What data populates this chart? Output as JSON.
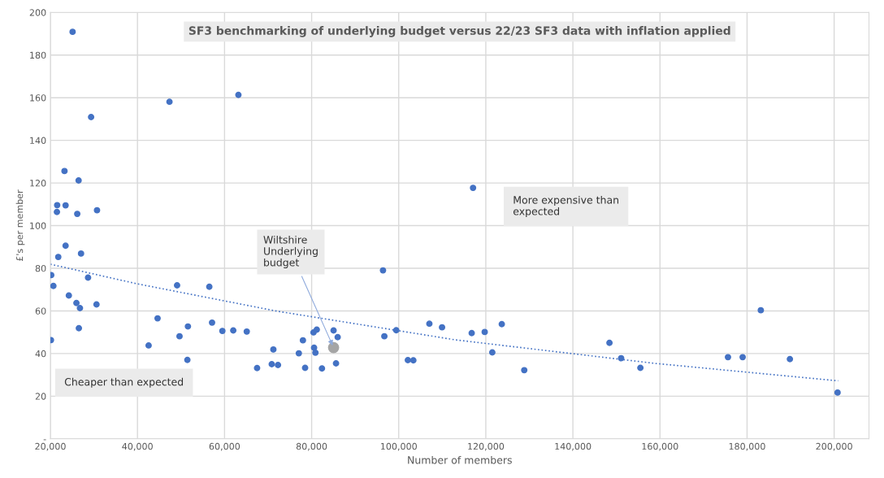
{
  "chart_data": {
    "type": "scatter",
    "title": "SF3 benchmarking of underlying budget versus 22/23 SF3 data with inflation applied",
    "xlabel": "Number of members",
    "ylabel": "£'s per member",
    "xlim": [
      20000,
      208000
    ],
    "xticks": [
      {
        "value": 20000,
        "label": "20,000"
      },
      {
        "value": 40000,
        "label": "40,000"
      },
      {
        "value": 60000,
        "label": "60,000"
      },
      {
        "value": 80000,
        "label": "80,000"
      },
      {
        "value": 100000,
        "label": "100,000"
      },
      {
        "value": 120000,
        "label": "120,000"
      },
      {
        "value": 140000,
        "label": "140,000"
      },
      {
        "value": 160000,
        "label": "160,000"
      },
      {
        "value": 180000,
        "label": "180,000"
      },
      {
        "value": 200000,
        "label": "200,000"
      }
    ],
    "ylim": [
      0,
      200
    ],
    "yticks": [
      {
        "value": 0,
        "label": "-"
      },
      20,
      40,
      60,
      80,
      100,
      120,
      140,
      160,
      180,
      200
    ],
    "grid": true,
    "legend": false,
    "marker": "circle",
    "series": [
      {
        "color": "#4472c4",
        "x": [
          25100,
          29350,
          47350,
          63180,
          23240,
          26480,
          21560,
          23490,
          21500,
          26170,
          30710,
          23490,
          21810,
          27040,
          20190,
          20690,
          28650,
          24240,
          25980,
          26790,
          30590,
          26540,
          20130,
          49100,
          56500,
          44620,
          42560,
          49660,
          51590,
          51460,
          57130,
          59500,
          62000,
          65100,
          67470,
          71210,
          70840,
          72270,
          78000,
          77060,
          78500,
          80430,
          81180,
          80560,
          80870,
          82370,
          85040,
          85980,
          85600,
          96390,
          96700,
          99430,
          102100,
          103360,
          107040,
          109950,
          116760,
          119750,
          121490,
          123670,
          128830,
          117070,
          175620,
          178990,
          183160,
          189840,
          200790,
          148400,
          151080,
          155500
        ],
        "values": [
          190.9,
          150.9,
          158.1,
          161.3,
          125.6,
          121.2,
          109.6,
          109.5,
          106.4,
          105.5,
          107.2,
          90.6,
          85.3,
          86.9,
          76.8,
          71.7,
          75.6,
          67.2,
          63.7,
          61.3,
          63.0,
          51.9,
          46.3,
          72.0,
          71.3,
          56.5,
          43.8,
          48.1,
          52.7,
          37.0,
          54.5,
          50.6,
          50.8,
          50.3,
          33.2,
          41.9,
          35.0,
          34.6,
          46.2,
          40.1,
          33.3,
          49.9,
          51.2,
          42.7,
          40.4,
          33.0,
          50.8,
          47.7,
          35.4,
          79.0,
          48.1,
          50.9,
          36.9,
          36.8,
          54.0,
          52.3,
          49.6,
          50.1,
          40.5,
          53.8,
          32.2,
          117.7,
          38.3,
          38.3,
          60.3,
          37.4,
          21.7,
          45.0,
          37.8,
          33.3
        ]
      },
      {
        "color": "#a5a5a5",
        "x": [
          85040
        ],
        "values": [
          42.8
        ]
      },
      {
        "type": "line",
        "color": "#4472c4",
        "line_style": "dotted",
        "marker": "none",
        "x": [
          20000,
          39940,
          71960,
          113080,
          159170,
          200900
        ],
        "values": [
          81.9,
          72.7,
          59.9,
          46.4,
          35.3,
          27.2
        ]
      }
    ],
    "annotations": [
      {
        "text": "Wiltshire\nUnderlying\nbudget",
        "x": 85040,
        "y": 42.8
      },
      "More expensive than\nexpected",
      "Cheaper than expected"
    ]
  }
}
